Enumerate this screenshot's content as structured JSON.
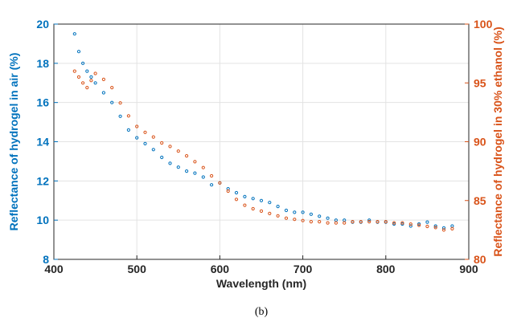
{
  "caption": "(b)",
  "chart_data": {
    "type": "scatter",
    "xlabel": "Wavelength (nm)",
    "ylabel_left": "Reflectance of hydrogel in air (%)",
    "ylabel_right": "Reflectance of hydrogel in 30% ethanol (%)",
    "xlim": [
      400,
      900
    ],
    "ylim_left": [
      8,
      20
    ],
    "ylim_right": [
      80,
      100
    ],
    "x_ticks": [
      400,
      500,
      600,
      700,
      800,
      900
    ],
    "y_ticks_left": [
      8,
      10,
      12,
      14,
      16,
      18,
      20
    ],
    "y_ticks_right": [
      80,
      85,
      90,
      95,
      100
    ],
    "grid": true,
    "marker": "open-circle",
    "colors": {
      "air": "#0072BD",
      "ethanol": "#D95319",
      "grid": "#e3e3e3"
    },
    "series": [
      {
        "key": "air",
        "axis": "left",
        "x": [
          425,
          430,
          435,
          440,
          445,
          450,
          460,
          470,
          480,
          490,
          500,
          510,
          520,
          530,
          540,
          550,
          560,
          570,
          580,
          590,
          600,
          610,
          620,
          630,
          640,
          650,
          660,
          670,
          680,
          690,
          700,
          710,
          720,
          730,
          740,
          750,
          760,
          770,
          780,
          790,
          800,
          810,
          820,
          830,
          840,
          850,
          860,
          870,
          880
        ],
        "y": [
          19.5,
          18.6,
          18.0,
          17.6,
          17.3,
          17.0,
          16.5,
          16.0,
          15.3,
          14.6,
          14.2,
          13.9,
          13.6,
          13.2,
          12.9,
          12.7,
          12.5,
          12.4,
          12.2,
          11.8,
          11.9,
          11.6,
          11.4,
          11.2,
          11.1,
          11.0,
          10.9,
          10.7,
          10.5,
          10.4,
          10.4,
          10.3,
          10.2,
          10.1,
          10.0,
          10.0,
          9.9,
          9.9,
          10.0,
          9.9,
          9.9,
          9.8,
          9.8,
          9.7,
          9.8,
          9.9,
          9.7,
          9.6,
          9.7
        ]
      },
      {
        "key": "ethanol",
        "axis": "right",
        "x": [
          425,
          430,
          435,
          440,
          445,
          450,
          460,
          470,
          480,
          490,
          500,
          510,
          520,
          530,
          540,
          550,
          560,
          570,
          580,
          590,
          600,
          610,
          620,
          630,
          640,
          650,
          660,
          670,
          680,
          690,
          700,
          710,
          720,
          730,
          740,
          750,
          760,
          770,
          780,
          790,
          800,
          810,
          820,
          830,
          840,
          850,
          860,
          870,
          880
        ],
        "y": [
          96.0,
          95.5,
          95.0,
          94.6,
          95.2,
          95.8,
          95.3,
          94.6,
          93.3,
          92.2,
          91.3,
          90.8,
          90.4,
          89.9,
          89.6,
          89.2,
          88.8,
          88.3,
          87.8,
          87.1,
          86.5,
          85.8,
          85.1,
          84.6,
          84.3,
          84.1,
          83.9,
          83.7,
          83.5,
          83.4,
          83.3,
          83.2,
          83.2,
          83.1,
          83.1,
          83.1,
          83.2,
          83.2,
          83.2,
          83.2,
          83.2,
          83.1,
          83.1,
          83.0,
          82.9,
          82.8,
          82.7,
          82.5,
          82.6
        ]
      }
    ]
  }
}
